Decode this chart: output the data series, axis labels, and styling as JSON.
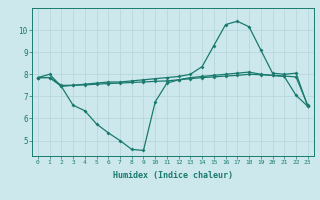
{
  "xlabel": "Humidex (Indice chaleur)",
  "ylabel": "",
  "bg_color": "#cce8ed",
  "grid_color": "#b8d8dd",
  "line_color": "#1a7a6e",
  "xlim": [
    -0.5,
    23.5
  ],
  "ylim": [
    4.3,
    11.0
  ],
  "xticks": [
    0,
    1,
    2,
    3,
    4,
    5,
    6,
    7,
    8,
    9,
    10,
    11,
    12,
    13,
    14,
    15,
    16,
    17,
    18,
    19,
    20,
    21,
    22,
    23
  ],
  "yticks": [
    5,
    6,
    7,
    8,
    9,
    10
  ],
  "line1_x": [
    0,
    1,
    2,
    3,
    4,
    5,
    6,
    7,
    8,
    9,
    10,
    11,
    12,
    13,
    14,
    15,
    16,
    17,
    18,
    19,
    20,
    21,
    22,
    23
  ],
  "line1_y": [
    7.85,
    8.0,
    7.45,
    7.5,
    7.55,
    7.6,
    7.65,
    7.65,
    7.7,
    7.75,
    7.8,
    7.85,
    7.9,
    8.0,
    8.35,
    9.3,
    10.25,
    10.4,
    10.15,
    9.1,
    8.05,
    8.0,
    8.05,
    6.55
  ],
  "line2_x": [
    0,
    1,
    2,
    3,
    4,
    5,
    6,
    7,
    8,
    9,
    10,
    11,
    12,
    13,
    14,
    15,
    16,
    17,
    18,
    19,
    20,
    21,
    22,
    23
  ],
  "line2_y": [
    7.85,
    7.85,
    7.5,
    7.5,
    7.52,
    7.55,
    7.58,
    7.6,
    7.63,
    7.65,
    7.68,
    7.7,
    7.75,
    7.8,
    7.85,
    7.88,
    7.92,
    7.95,
    8.0,
    7.98,
    7.95,
    7.92,
    7.88,
    6.6
  ],
  "line3_x": [
    0,
    1,
    2,
    3,
    4,
    5,
    6,
    7,
    8,
    9,
    10,
    11,
    12,
    13,
    14,
    15,
    16,
    17,
    18,
    19,
    20,
    21,
    22,
    23
  ],
  "line3_y": [
    7.85,
    7.85,
    7.45,
    6.6,
    6.35,
    5.75,
    5.35,
    5.0,
    4.6,
    4.55,
    6.75,
    7.6,
    7.75,
    7.85,
    7.9,
    7.95,
    8.0,
    8.05,
    8.1,
    8.0,
    7.95,
    7.9,
    7.05,
    6.55
  ]
}
